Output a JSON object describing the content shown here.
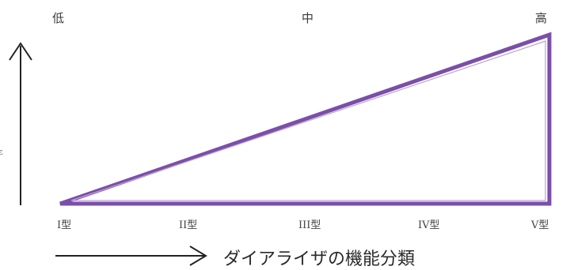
{
  "levels": [
    "低",
    "中",
    "高"
  ],
  "types": [
    "I型",
    "II型",
    "III型",
    "IV型",
    "V型"
  ],
  "x_axis_label": "ダイアライザの機能分類",
  "edge_mark": "ε",
  "colors": {
    "triangle_stroke": "#7b4fa8",
    "triangle_inner": "#b9a3d6",
    "arrow": "#222222"
  }
}
